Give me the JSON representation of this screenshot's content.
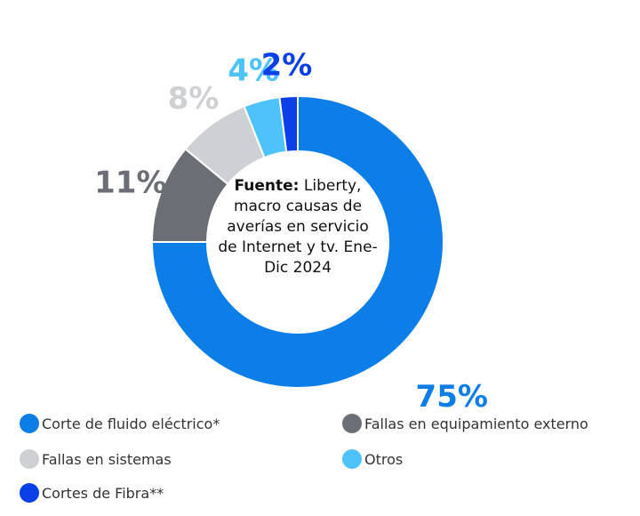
{
  "chart_data": {
    "type": "pie",
    "variant": "donut",
    "slices": [
      {
        "label": "Corte de fluido eléctrico*",
        "value": 75,
        "value_label": "75%",
        "color": "#0d7ee8"
      },
      {
        "label": "Fallas en equipamiento externo",
        "value": 11,
        "value_label": "11%",
        "color": "#6b6e75"
      },
      {
        "label": "Fallas en sistemas",
        "value": 8,
        "value_label": "8%",
        "color": "#cfd0d4"
      },
      {
        "label": "Otros",
        "value": 4,
        "value_label": "4%",
        "color": "#4ec2fb"
      },
      {
        "label": "Cortes de Fibra**",
        "value": 2,
        "value_label": "2%",
        "color": "#0b3fe8"
      }
    ],
    "legend_placement": "bottom",
    "center_note": {
      "source_label": "Fuente:",
      "source_text": "Liberty, macro causas de averías en servicio de Internet y tv. Ene-Dic 2024"
    }
  }
}
